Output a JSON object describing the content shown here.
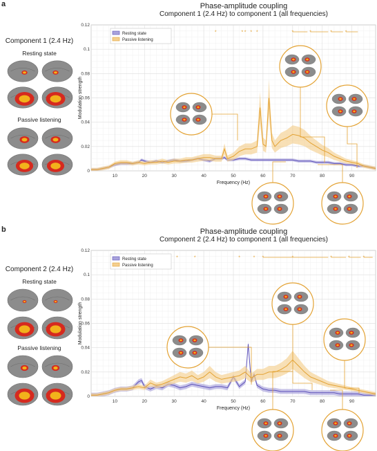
{
  "colors": {
    "resting": "#5b4fb8",
    "resting_fill": "#a9a3dc",
    "passive": "#e3a233",
    "passive_fill": "#f4cf8f",
    "sig_star": "#e3a233",
    "callout": "#e3a233",
    "brain_gray": "#8c8c8c",
    "brain_hot": "#d62a1e",
    "brain_warm": "#f2b21b"
  },
  "panels": [
    {
      "letter": "a",
      "title": "Phase-amplitude coupling",
      "subtitle": "Component 1 (2.4 Hz) to component 1 (all frequencies)",
      "component_label": "Component 1 (2.4 Hz)",
      "condition_labels": [
        "Resting state",
        "Passive listening"
      ]
    },
    {
      "letter": "b",
      "title": "Phase-amplitude coupling",
      "subtitle": "Component 2 (2.4 Hz) to component 1 (all frequencies)",
      "component_label": "Component 2 (2.4 Hz)",
      "condition_labels": [
        "Resting state",
        "Passive listening"
      ]
    }
  ],
  "chart_data": [
    {
      "type": "line",
      "xlabel": "Frequency (Hz)",
      "ylabel": "Modulation strength",
      "xlim": [
        2,
        98
      ],
      "ylim": [
        0,
        0.12
      ],
      "xticks": [
        10,
        20,
        30,
        40,
        50,
        60,
        70,
        80,
        90
      ],
      "yticks": [
        0,
        0.02,
        0.04,
        0.06,
        0.08,
        0.1,
        0.12
      ],
      "grid": true,
      "legend": "top-left",
      "series": [
        {
          "name": "Resting state",
          "color": "#5b4fb8",
          "x": [
            2,
            4,
            6,
            8,
            10,
            12,
            14,
            16,
            18,
            19,
            20,
            22,
            24,
            26,
            28,
            30,
            32,
            34,
            36,
            38,
            40,
            42,
            44,
            46,
            47,
            48,
            50,
            52,
            54,
            56,
            58,
            60,
            62,
            64,
            66,
            68,
            70,
            72,
            74,
            76,
            78,
            80,
            82,
            84,
            86,
            88,
            90,
            92,
            94,
            96,
            98
          ],
          "y": [
            0.001,
            0.001,
            0.002,
            0.003,
            0.005,
            0.006,
            0.006,
            0.006,
            0.007,
            0.009,
            0.008,
            0.007,
            0.008,
            0.007,
            0.008,
            0.009,
            0.008,
            0.008,
            0.009,
            0.01,
            0.009,
            0.008,
            0.01,
            0.01,
            0.011,
            0.009,
            0.009,
            0.01,
            0.01,
            0.009,
            0.009,
            0.009,
            0.009,
            0.009,
            0.009,
            0.009,
            0.009,
            0.008,
            0.008,
            0.008,
            0.007,
            0.007,
            0.007,
            0.006,
            0.006,
            0.005,
            0.005,
            0.004,
            0.004,
            0.003,
            0.002
          ],
          "band": 0.0012
        },
        {
          "name": "Passive listening",
          "color": "#e3a233",
          "x": [
            2,
            4,
            6,
            8,
            10,
            12,
            14,
            16,
            18,
            20,
            22,
            24,
            26,
            28,
            30,
            32,
            34,
            36,
            38,
            40,
            42,
            44,
            46,
            47,
            48,
            50,
            52,
            54,
            56,
            58,
            59,
            60,
            61,
            62,
            63,
            64,
            66,
            68,
            70,
            72,
            74,
            76,
            78,
            80,
            82,
            84,
            86,
            88,
            90,
            92,
            94,
            96,
            98
          ],
          "y": [
            0.001,
            0.001,
            0.002,
            0.003,
            0.006,
            0.007,
            0.007,
            0.006,
            0.007,
            0.006,
            0.007,
            0.007,
            0.008,
            0.007,
            0.008,
            0.008,
            0.009,
            0.009,
            0.01,
            0.011,
            0.011,
            0.01,
            0.01,
            0.018,
            0.01,
            0.012,
            0.016,
            0.018,
            0.018,
            0.02,
            0.052,
            0.022,
            0.02,
            0.06,
            0.025,
            0.02,
            0.025,
            0.027,
            0.03,
            0.029,
            0.027,
            0.023,
            0.02,
            0.017,
            0.015,
            0.012,
            0.01,
            0.008,
            0.007,
            0.006,
            0.004,
            0.003,
            0.002
          ],
          "band_frac": 0.25
        }
      ],
      "significance_markers_hz": [
        23,
        28,
        44,
        53,
        54,
        56,
        58
      ],
      "significance_ranges_hz": [
        [
          70,
          75
        ],
        [
          76,
          82
        ],
        [
          83,
          87
        ],
        [
          88,
          92
        ]
      ]
    },
    {
      "type": "line",
      "xlabel": "Frequency (Hz)",
      "ylabel": "Modulation strength",
      "xlim": [
        2,
        98
      ],
      "ylim": [
        0,
        0.12
      ],
      "xticks": [
        10,
        20,
        30,
        40,
        50,
        60,
        70,
        80,
        90
      ],
      "yticks": [
        0,
        0.02,
        0.04,
        0.06,
        0.08,
        0.1,
        0.12
      ],
      "grid": true,
      "legend": "top-left",
      "series": [
        {
          "name": "Resting state",
          "color": "#5b4fb8",
          "x": [
            2,
            4,
            6,
            8,
            10,
            12,
            14,
            16,
            18,
            19,
            20,
            22,
            24,
            26,
            28,
            30,
            32,
            34,
            36,
            38,
            40,
            42,
            44,
            46,
            48,
            50,
            52,
            54,
            55,
            56,
            57,
            58,
            60,
            62,
            64,
            66,
            68,
            70,
            72,
            74,
            76,
            78,
            80,
            82,
            84,
            86,
            88,
            90,
            92,
            94,
            96,
            98
          ],
          "y": [
            0.001,
            0.001,
            0.002,
            0.003,
            0.005,
            0.006,
            0.006,
            0.007,
            0.012,
            0.013,
            0.008,
            0.006,
            0.008,
            0.007,
            0.01,
            0.009,
            0.007,
            0.008,
            0.01,
            0.009,
            0.008,
            0.007,
            0.008,
            0.008,
            0.007,
            0.016,
            0.008,
            0.012,
            0.043,
            0.012,
            0.018,
            0.009,
            0.006,
            0.005,
            0.005,
            0.004,
            0.004,
            0.004,
            0.004,
            0.004,
            0.003,
            0.003,
            0.003,
            0.003,
            0.003,
            0.002,
            0.002,
            0.002,
            0.002,
            0.001,
            0.001,
            0.001
          ],
          "band": 0.002
        },
        {
          "name": "Passive listening",
          "color": "#e3a233",
          "x": [
            2,
            4,
            6,
            8,
            10,
            12,
            14,
            16,
            18,
            20,
            22,
            24,
            26,
            28,
            30,
            32,
            34,
            36,
            38,
            40,
            42,
            44,
            46,
            48,
            50,
            52,
            54,
            56,
            58,
            60,
            62,
            64,
            66,
            68,
            70,
            72,
            74,
            76,
            78,
            80,
            82,
            84,
            86,
            88,
            90,
            92,
            94,
            96,
            98
          ],
          "y": [
            0.001,
            0.001,
            0.002,
            0.003,
            0.005,
            0.006,
            0.006,
            0.007,
            0.008,
            0.007,
            0.011,
            0.009,
            0.01,
            0.012,
            0.014,
            0.016,
            0.015,
            0.017,
            0.014,
            0.016,
            0.02,
            0.016,
            0.014,
            0.015,
            0.016,
            0.017,
            0.02,
            0.015,
            0.018,
            0.018,
            0.02,
            0.02,
            0.022,
            0.025,
            0.03,
            0.025,
            0.02,
            0.016,
            0.014,
            0.012,
            0.01,
            0.009,
            0.008,
            0.007,
            0.006,
            0.005,
            0.004,
            0.003,
            0.002
          ],
          "band_frac": 0.25
        }
      ],
      "significance_markers_hz": [
        28,
        31,
        37,
        52,
        57
      ],
      "significance_ranges_hz": [
        [
          60,
          70
        ],
        [
          70,
          82
        ],
        [
          83,
          88
        ],
        [
          89,
          93
        ],
        [
          94,
          97
        ]
      ]
    }
  ]
}
